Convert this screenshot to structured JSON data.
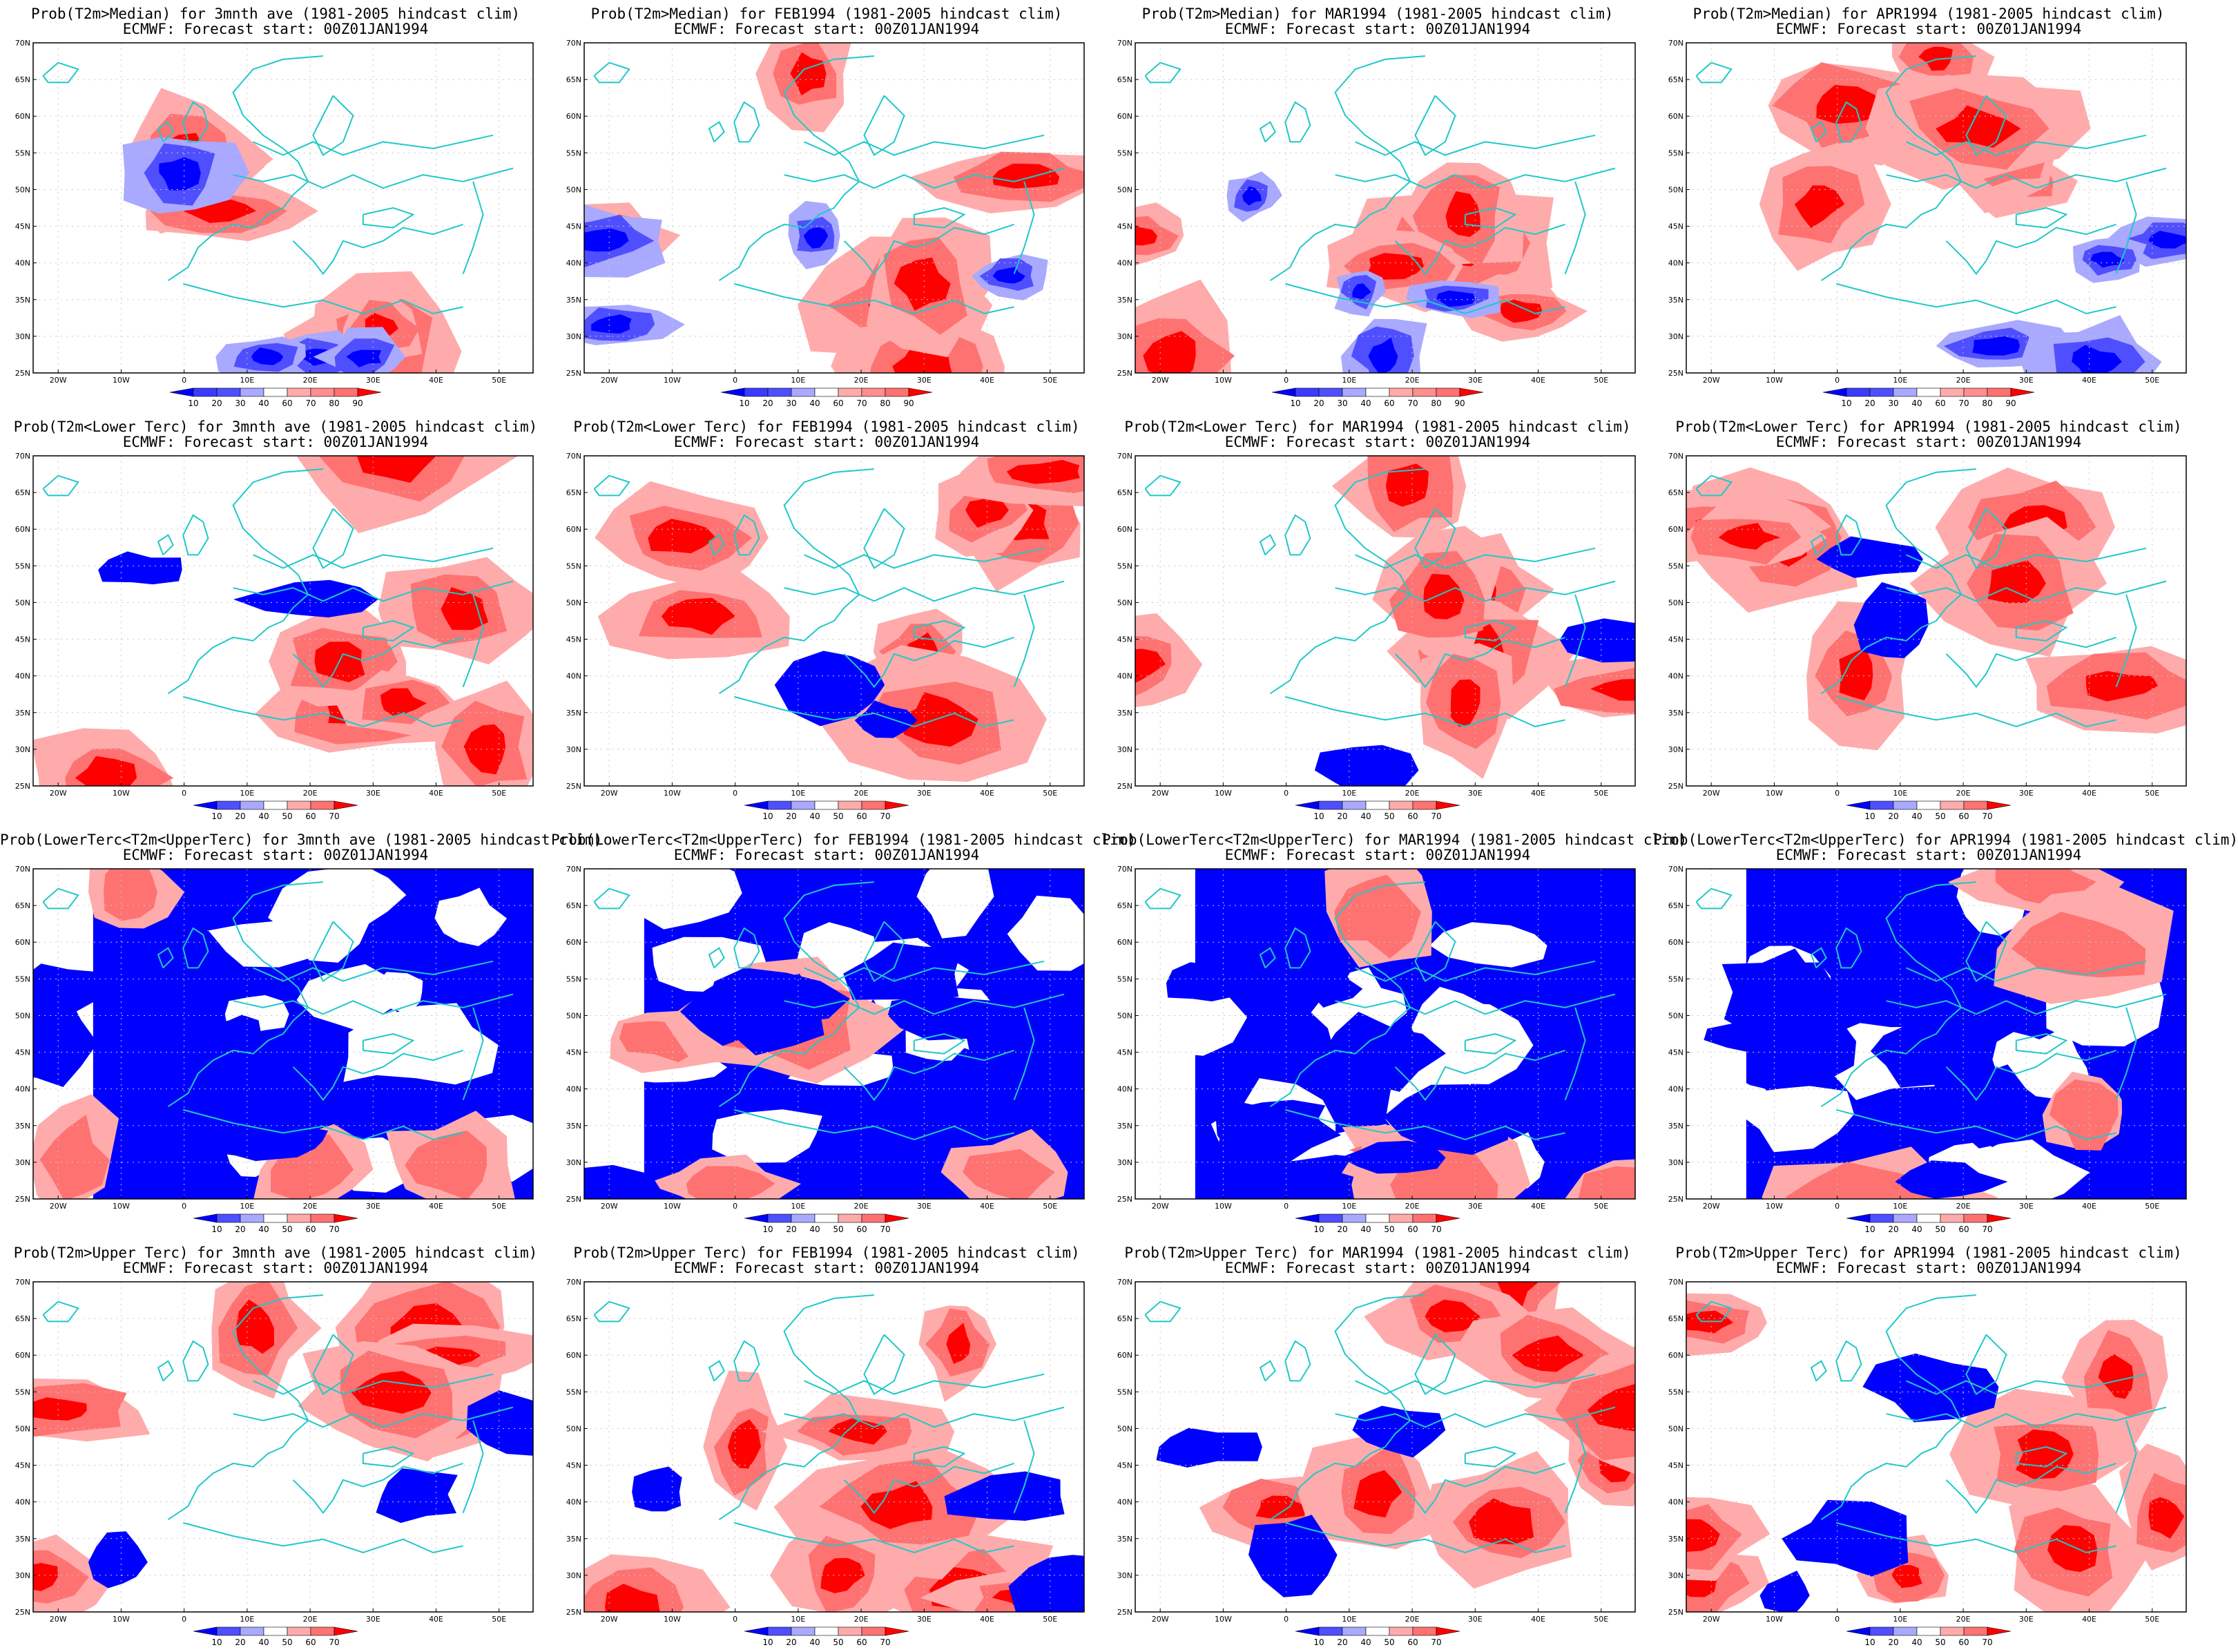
{
  "rows": [
    {
      "titles": [
        "Prob(T2m>Median) for 3mnth ave (1981-2005 hindcast clim)",
        "Prob(T2m>Median) for FEB1994 (1981-2005 hindcast clim)",
        "Prob(T2m>Median) for MAR1994 (1981-2005 hindcast clim)",
        "Prob(T2m>Median) for APR1994 (1981-2005 hindcast clim)"
      ],
      "colorbar": [
        "10",
        "20",
        "30",
        "40",
        "60",
        "70",
        "80",
        "90"
      ]
    },
    {
      "titles": [
        "Prob(T2m<Lower Terc) for 3mnth ave (1981-2005 hindcast clim)",
        "Prob(T2m<Lower Terc) for FEB1994 (1981-2005 hindcast clim)",
        "Prob(T2m<Lower Terc) for MAR1994 (1981-2005 hindcast clim)",
        "Prob(T2m<Lower Terc) for APR1994 (1981-2005 hindcast clim)"
      ],
      "colorbar": [
        "10",
        "20",
        "40",
        "50",
        "60",
        "70"
      ]
    },
    {
      "titles": [
        "Prob(LowerTerc<T2m<UpperTerc) for 3mnth ave (1981-2005 hindcast clim)",
        "Prob(LowerTerc<T2m<UpperTerc) for FEB1994 (1981-2005 hindcast clim)",
        "Prob(LowerTerc<T2m<UpperTerc) for MAR1994 (1981-2005 hindcast clim)",
        "Prob(LowerTerc<T2m<UpperTerc) for APR1994 (1981-2005 hindcast clim)"
      ],
      "colorbar": [
        "10",
        "20",
        "40",
        "50",
        "60",
        "70"
      ]
    },
    {
      "titles": [
        "Prob(T2m>Upper Terc) for 3mnth ave (1981-2005 hindcast clim)",
        "Prob(T2m>Upper Terc) for FEB1994 (1981-2005 hindcast clim)",
        "Prob(T2m>Upper Terc) for MAR1994 (1981-2005 hindcast clim)",
        "Prob(T2m>Upper Terc) for APR1994 (1981-2005 hindcast clim)"
      ],
      "colorbar": [
        "10",
        "20",
        "40",
        "50",
        "60",
        "70"
      ]
    }
  ],
  "subtitle": "ECMWF: Forecast start: 00Z01JAN1994",
  "lat_labels": [
    "70N",
    "65N",
    "60N",
    "55N",
    "50N",
    "45N",
    "40N",
    "35N",
    "30N",
    "25N"
  ],
  "lon_labels": [
    "20W",
    "10W",
    "0",
    "10E",
    "20E",
    "30E",
    "40E",
    "50E"
  ],
  "colors": {
    "blue_strong": "#0000ff",
    "blue_mid": "#4f4fff",
    "blue_light": "#a9a9ff",
    "red_light": "#ffabab",
    "red_mid": "#ff7272",
    "red_strong": "#ff0000",
    "coast": "#20c8c8"
  }
}
